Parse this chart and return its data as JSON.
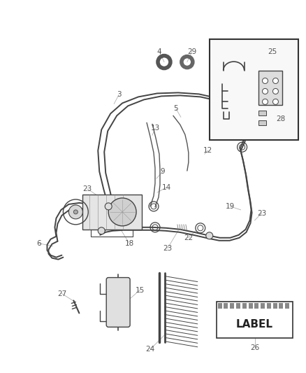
{
  "bg_color": "#ffffff",
  "line_color": "#444444",
  "fig_width": 4.38,
  "fig_height": 5.33,
  "dpi": 100
}
